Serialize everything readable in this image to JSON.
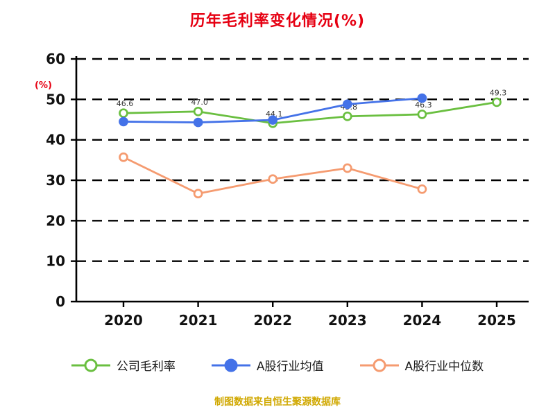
{
  "title": "历年毛利率变化情况(%)",
  "footer": "制图数据来自恒生聚源数据库",
  "chart_data": {
    "type": "line",
    "title": "历年毛利率变化情况(%)",
    "xlabel": "",
    "ylabel": "(%)",
    "ylim": [
      0,
      60
    ],
    "y_ticks": [
      0,
      10,
      20,
      30,
      40,
      50,
      60
    ],
    "grid": "horizontal-dashed",
    "legend_position": "bottom",
    "categories": [
      "2020",
      "2021",
      "2022",
      "2023",
      "2024",
      "2025"
    ],
    "series": [
      {
        "name": "公司毛利率",
        "color": "#6abf40",
        "marker_fill": "#ffffff",
        "values": [
          46.6,
          47.0,
          44.1,
          45.8,
          46.3,
          49.3
        ],
        "labels": [
          "46.6",
          "47.0",
          "44.1",
          "45.8",
          "46.3",
          "49.3"
        ]
      },
      {
        "name": "A股行业均值",
        "color": "#4472e8",
        "marker_fill": "#4472e8",
        "values": [
          44.5,
          44.3,
          44.9,
          48.8,
          50.3,
          null
        ]
      },
      {
        "name": "A股行业中位数",
        "color": "#f59b70",
        "marker_fill": "#ffffff",
        "values": [
          35.7,
          26.7,
          30.3,
          33.0,
          27.8,
          null
        ]
      }
    ],
    "colors": {
      "title": "#e60012",
      "axis": "#000000",
      "tick_label": "#111111",
      "footer": "#d0a800"
    }
  }
}
